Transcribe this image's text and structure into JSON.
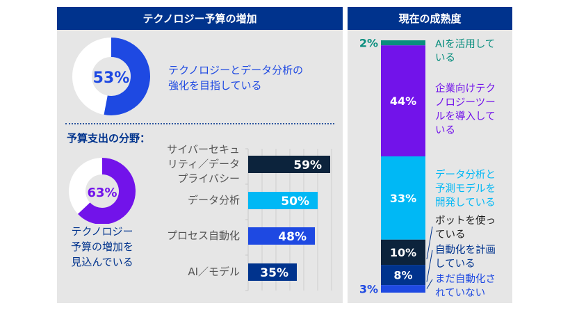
{
  "left_panel": {
    "title": "テクノロジー予算の増加",
    "donut1": {
      "value": 53,
      "label": "53%",
      "description_lines": [
        "テクノロジーとデータ分析の",
        "強化を目指している"
      ],
      "color": "#1e49e2"
    },
    "spend_title": "予算支出の分野：",
    "donut2": {
      "value": 63,
      "label": "63%",
      "description_lines": [
        "テクノロジー",
        "予算の増加を",
        "見込んでいる"
      ],
      "color": "#7213ea"
    }
  },
  "right_panel": {
    "title": "現在の成熟度"
  },
  "chart_data": [
    {
      "type": "pie",
      "title": "",
      "values": [
        53,
        47
      ],
      "labels": [
        "テクノロジーとデータ分析の強化を目指している",
        ""
      ],
      "colors": [
        "#1e49e2",
        "#ffffff"
      ]
    },
    {
      "type": "pie",
      "title": "",
      "values": [
        63,
        37
      ],
      "labels": [
        "テクノロジー予算の増加を見込んでいる",
        ""
      ],
      "colors": [
        "#7213ea",
        "#ffffff"
      ]
    },
    {
      "type": "bar",
      "orientation": "horizontal",
      "title": "予算支出の分野：",
      "categories": [
        "サイバーセキュリティ／データプライバシー",
        "データ分析",
        "プロセス自動化",
        "AI／モデル"
      ],
      "category_lines": [
        [
          "サイバーセキュ",
          "リティ／データ",
          "プライバシー"
        ],
        [
          "データ分析"
        ],
        [
          "プロセス自動化"
        ],
        [
          "AI／モデル"
        ]
      ],
      "values": [
        59,
        50,
        48,
        35
      ],
      "value_labels": [
        "59%",
        "50%",
        "48%",
        "35%"
      ],
      "colors": [
        "#0c233c",
        "#00b8f5",
        "#1e49e2",
        "#00338d"
      ],
      "xlim": [
        0,
        60
      ],
      "grid": true
    },
    {
      "type": "bar",
      "orientation": "stacked-vertical",
      "title": "現在の成熟度",
      "segments": [
        {
          "value": 2,
          "label": "2%",
          "text_lines": [
            "AIを活用して",
            "いる"
          ],
          "color": "#098e7e"
        },
        {
          "value": 44,
          "label": "44%",
          "text_lines": [
            "企業向けテク",
            "ノロジーツー",
            "ルを導入して",
            "いる"
          ],
          "color": "#7213ea"
        },
        {
          "value": 33,
          "label": "33%",
          "text_lines": [
            "データ分析と",
            "予測モデルを",
            "開発している"
          ],
          "color": "#00b8f5"
        },
        {
          "value": 10,
          "label": "10%",
          "text_lines": [
            "ボットを使っ",
            "ている"
          ],
          "color": "#0c233c"
        },
        {
          "value": 8,
          "label": "8%",
          "text_lines": [
            "自動化を計画",
            "している"
          ],
          "color": "#00338d"
        },
        {
          "value": 3,
          "label": "3%",
          "text_lines": [
            "まだ自動化さ",
            "れていない"
          ],
          "color": "#1e49e2"
        }
      ]
    }
  ]
}
